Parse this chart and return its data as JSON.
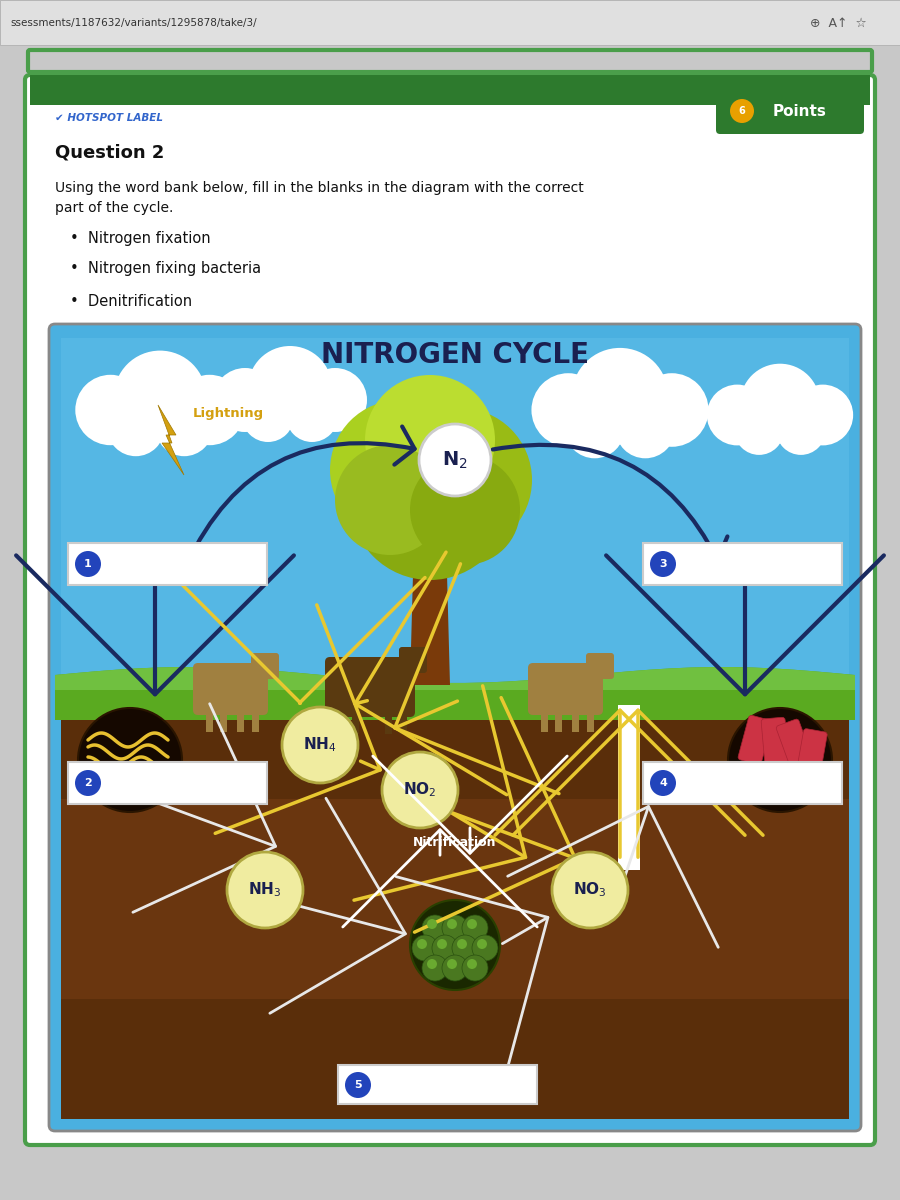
{
  "bg_color": "#c8c8c8",
  "tab_bg": "#e0e0e0",
  "card_bg": "#ffffff",
  "card_border": "#4a9e4a",
  "header_bar_color": "#2d7a2d",
  "hotspot_label_text": "HOTSPOT LABEL",
  "hotspot_label_color": "#3366cc",
  "points_text": "Points",
  "points_dot_color": "#e8a000",
  "question_text": "Question 2",
  "instruction_line1": "Using the word bank below, fill in the blanks in the diagram with the correct",
  "instruction_line2": "part of the cycle.",
  "word_bank": [
    "Nitrogen fixation",
    "Nitrogen fixing bacteria",
    "Denitrification"
  ],
  "sky_blue": "#4ab0e0",
  "sky_light": "#70c8f0",
  "grass_green": "#5aaa20",
  "grass_light": "#70c040",
  "soil_brown": "#5a2e0a",
  "soil_mid": "#7a3e15",
  "soil_light": "#9a5525",
  "title_text": "NITROGEN CYCLE",
  "title_color": "#1a2050",
  "lightning_color": "#d4a010",
  "lightning_text": "Lightning",
  "n2_text": "N₂",
  "nh4_text": "NH₄",
  "no2_text": "NO₂",
  "nh3_text": "NH₃",
  "no3_text": "NO₃",
  "nitrification_text": "Nitrification",
  "arrow_dark": "#1a2a60",
  "arrow_yellow": "#e8c830",
  "arrow_white": "#e8e8e8",
  "url_text": "ssessments/1187632/variants/1295878/take/3/",
  "num_circle_color": "#2244bb",
  "molecule_circle_bg": "#f0eca0",
  "molecule_circle_border": "#b0a840",
  "molecule_text_color": "#1a2050"
}
